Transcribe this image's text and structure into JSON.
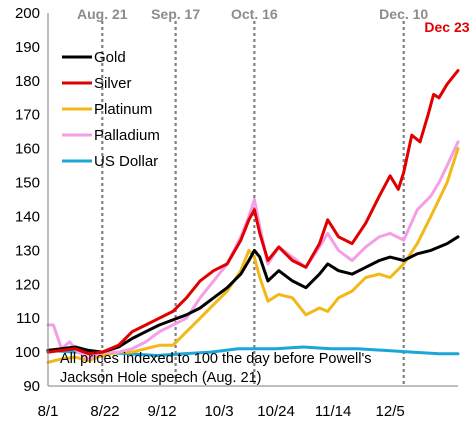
{
  "chart_data": {
    "type": "line",
    "ylim": [
      90,
      200
    ],
    "yticks": [
      90,
      100,
      110,
      120,
      130,
      140,
      150,
      160,
      170,
      180,
      190,
      200
    ],
    "x_range": [
      "2025-08-01",
      "2025-12-30"
    ],
    "xtick_labels": [
      {
        "date": "2025-08-01",
        "label": "8/1"
      },
      {
        "date": "2025-08-22",
        "label": "8/22"
      },
      {
        "date": "2025-09-12",
        "label": "9/12"
      },
      {
        "date": "2025-10-03",
        "label": "10/3"
      },
      {
        "date": "2025-10-24",
        "label": "10/24"
      },
      {
        "date": "2025-11-14",
        "label": "11/14"
      },
      {
        "date": "2025-12-05",
        "label": "12/5"
      }
    ],
    "event_lines": [
      {
        "date": "2025-08-21",
        "label": "Aug. 21"
      },
      {
        "date": "2025-09-17",
        "label": "Sep. 17"
      },
      {
        "date": "2025-10-16",
        "label": "Oct. 16"
      },
      {
        "date": "2025-12-10",
        "label": "Dec. 10"
      }
    ],
    "end_label": {
      "date": "2025-12-23",
      "text": "Dec 23"
    },
    "note_lines": [
      "All prices indexed to 100 the day before Powell's",
      "Jackson Hole speech (Aug. 21)"
    ],
    "legend_position": "top-left",
    "grid": false,
    "series": [
      {
        "name": "Gold",
        "color": "#000000",
        "points": [
          [
            "2025-08-01",
            100.5
          ],
          [
            "2025-08-06",
            101
          ],
          [
            "2025-08-11",
            101.5
          ],
          [
            "2025-08-16",
            100.5
          ],
          [
            "2025-08-21",
            100
          ],
          [
            "2025-08-27",
            101.5
          ],
          [
            "2025-09-01",
            104
          ],
          [
            "2025-09-06",
            106
          ],
          [
            "2025-09-11",
            108
          ],
          [
            "2025-09-16",
            109.5
          ],
          [
            "2025-09-21",
            111
          ],
          [
            "2025-09-26",
            113
          ],
          [
            "2025-10-01",
            116
          ],
          [
            "2025-10-06",
            119
          ],
          [
            "2025-10-11",
            123
          ],
          [
            "2025-10-14",
            127
          ],
          [
            "2025-10-16",
            130
          ],
          [
            "2025-10-18",
            128
          ],
          [
            "2025-10-21",
            121
          ],
          [
            "2025-10-25",
            124
          ],
          [
            "2025-10-30",
            121
          ],
          [
            "2025-11-04",
            119
          ],
          [
            "2025-11-09",
            123
          ],
          [
            "2025-11-12",
            126
          ],
          [
            "2025-11-16",
            124
          ],
          [
            "2025-11-21",
            123
          ],
          [
            "2025-11-26",
            125
          ],
          [
            "2025-12-01",
            127
          ],
          [
            "2025-12-05",
            128
          ],
          [
            "2025-12-10",
            127
          ],
          [
            "2025-12-15",
            129
          ],
          [
            "2025-12-20",
            130
          ],
          [
            "2025-12-23",
            131
          ],
          [
            "2025-12-26",
            132
          ],
          [
            "2025-12-30",
            134
          ]
        ]
      },
      {
        "name": "Silver",
        "color": "#e00000",
        "points": [
          [
            "2025-08-01",
            100
          ],
          [
            "2025-08-06",
            100.5
          ],
          [
            "2025-08-11",
            101
          ],
          [
            "2025-08-16",
            99.5
          ],
          [
            "2025-08-21",
            100
          ],
          [
            "2025-08-27",
            102
          ],
          [
            "2025-09-01",
            106
          ],
          [
            "2025-09-06",
            108
          ],
          [
            "2025-09-11",
            110
          ],
          [
            "2025-09-16",
            112
          ],
          [
            "2025-09-21",
            116
          ],
          [
            "2025-09-26",
            121
          ],
          [
            "2025-10-01",
            124
          ],
          [
            "2025-10-06",
            126
          ],
          [
            "2025-10-11",
            133
          ],
          [
            "2025-10-14",
            139
          ],
          [
            "2025-10-16",
            142
          ],
          [
            "2025-10-18",
            135
          ],
          [
            "2025-10-21",
            127
          ],
          [
            "2025-10-25",
            131
          ],
          [
            "2025-10-30",
            127
          ],
          [
            "2025-11-04",
            125
          ],
          [
            "2025-11-09",
            132
          ],
          [
            "2025-11-12",
            139
          ],
          [
            "2025-11-16",
            134
          ],
          [
            "2025-11-21",
            132
          ],
          [
            "2025-11-26",
            138
          ],
          [
            "2025-12-01",
            146
          ],
          [
            "2025-12-05",
            152
          ],
          [
            "2025-12-08",
            148
          ],
          [
            "2025-12-10",
            153
          ],
          [
            "2025-12-13",
            164
          ],
          [
            "2025-12-16",
            162
          ],
          [
            "2025-12-19",
            170
          ],
          [
            "2025-12-21",
            176
          ],
          [
            "2025-12-23",
            175
          ],
          [
            "2025-12-26",
            179
          ],
          [
            "2025-12-30",
            183
          ]
        ]
      },
      {
        "name": "Platinum",
        "color": "#f2b818",
        "points": [
          [
            "2025-08-01",
            97
          ],
          [
            "2025-08-06",
            98
          ],
          [
            "2025-08-11",
            98.5
          ],
          [
            "2025-08-16",
            97.5
          ],
          [
            "2025-08-21",
            99
          ],
          [
            "2025-08-27",
            100
          ],
          [
            "2025-09-01",
            100
          ],
          [
            "2025-09-06",
            101
          ],
          [
            "2025-09-11",
            102
          ],
          [
            "2025-09-16",
            102
          ],
          [
            "2025-09-21",
            106
          ],
          [
            "2025-09-26",
            110
          ],
          [
            "2025-10-01",
            114
          ],
          [
            "2025-10-06",
            118
          ],
          [
            "2025-10-11",
            124
          ],
          [
            "2025-10-14",
            130
          ],
          [
            "2025-10-16",
            128
          ],
          [
            "2025-10-18",
            122
          ],
          [
            "2025-10-21",
            115
          ],
          [
            "2025-10-25",
            117
          ],
          [
            "2025-10-30",
            116
          ],
          [
            "2025-11-04",
            111
          ],
          [
            "2025-11-09",
            113
          ],
          [
            "2025-11-12",
            112
          ],
          [
            "2025-11-16",
            116
          ],
          [
            "2025-11-21",
            118
          ],
          [
            "2025-11-26",
            122
          ],
          [
            "2025-12-01",
            123
          ],
          [
            "2025-12-05",
            122
          ],
          [
            "2025-12-10",
            126
          ],
          [
            "2025-12-15",
            132
          ],
          [
            "2025-12-20",
            140
          ],
          [
            "2025-12-23",
            145
          ],
          [
            "2025-12-26",
            150
          ],
          [
            "2025-12-30",
            160
          ]
        ]
      },
      {
        "name": "Palladium",
        "color": "#f59ee8",
        "points": [
          [
            "2025-08-01",
            108
          ],
          [
            "2025-08-03",
            108
          ],
          [
            "2025-08-06",
            101
          ],
          [
            "2025-08-09",
            103
          ],
          [
            "2025-08-12",
            100
          ],
          [
            "2025-08-16",
            98
          ],
          [
            "2025-08-21",
            100
          ],
          [
            "2025-08-27",
            100
          ],
          [
            "2025-09-01",
            101
          ],
          [
            "2025-09-06",
            103
          ],
          [
            "2025-09-11",
            106
          ],
          [
            "2025-09-16",
            108
          ],
          [
            "2025-09-21",
            110
          ],
          [
            "2025-09-26",
            116
          ],
          [
            "2025-10-01",
            121
          ],
          [
            "2025-10-06",
            126
          ],
          [
            "2025-10-11",
            134
          ],
          [
            "2025-10-14",
            140
          ],
          [
            "2025-10-16",
            145
          ],
          [
            "2025-10-18",
            137
          ],
          [
            "2025-10-21",
            126
          ],
          [
            "2025-10-25",
            131
          ],
          [
            "2025-10-30",
            128
          ],
          [
            "2025-11-04",
            125
          ],
          [
            "2025-11-09",
            131
          ],
          [
            "2025-11-12",
            135
          ],
          [
            "2025-11-16",
            130
          ],
          [
            "2025-11-21",
            127
          ],
          [
            "2025-11-26",
            131
          ],
          [
            "2025-12-01",
            134
          ],
          [
            "2025-12-05",
            135
          ],
          [
            "2025-12-10",
            133
          ],
          [
            "2025-12-15",
            142
          ],
          [
            "2025-12-20",
            146
          ],
          [
            "2025-12-23",
            150
          ],
          [
            "2025-12-26",
            155
          ],
          [
            "2025-12-30",
            162
          ]
        ]
      },
      {
        "name": "US Dollar",
        "color": "#1aa7d8",
        "points": [
          [
            "2025-08-01",
            100.5
          ],
          [
            "2025-08-11",
            100
          ],
          [
            "2025-08-21",
            100
          ],
          [
            "2025-08-31",
            99.5
          ],
          [
            "2025-09-10",
            99
          ],
          [
            "2025-09-20",
            99.5
          ],
          [
            "2025-09-30",
            100
          ],
          [
            "2025-10-10",
            101
          ],
          [
            "2025-10-16",
            101
          ],
          [
            "2025-10-24",
            101
          ],
          [
            "2025-11-03",
            101.5
          ],
          [
            "2025-11-13",
            101
          ],
          [
            "2025-11-23",
            101
          ],
          [
            "2025-12-03",
            100.5
          ],
          [
            "2025-12-13",
            100
          ],
          [
            "2025-12-23",
            99.5
          ],
          [
            "2025-12-30",
            99.5
          ]
        ]
      }
    ]
  }
}
